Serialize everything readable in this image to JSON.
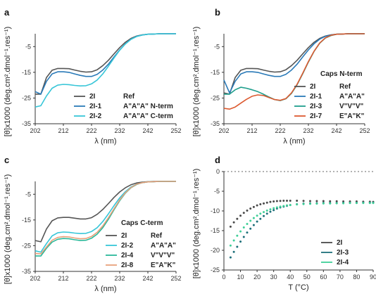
{
  "figure": {
    "panels": [
      {
        "letter": "a",
        "caption": ""
      },
      {
        "letter": "b",
        "caption": "Caps N-term"
      },
      {
        "letter": "c",
        "caption": "Caps C-term"
      },
      {
        "letter": "d",
        "caption": ""
      }
    ]
  },
  "chart_data": [
    {
      "type": "line",
      "panel": "a",
      "xlabel": "λ (nm)",
      "ylabel": "[θ]x1000 (deg.cm².dmol⁻¹.res⁻¹)",
      "xlim": [
        202,
        252
      ],
      "ylim": [
        -35,
        0
      ],
      "xticks": [
        "202",
        "212",
        "222",
        "232",
        "242",
        "252"
      ],
      "yticks": [
        "-5",
        "-15",
        "-25",
        "-35"
      ],
      "grid": false,
      "legend_position": "lower-right",
      "series": [
        {
          "name": "2I",
          "label": "Ref",
          "color": "#555555",
          "x": [
            202,
            204,
            206,
            208,
            210,
            212,
            214,
            216,
            218,
            220,
            222,
            224,
            226,
            228,
            230,
            232,
            234,
            236,
            238,
            240,
            242,
            244,
            246,
            248,
            250,
            252
          ],
          "y": [
            -23.5,
            -23.5,
            -17,
            -14.2,
            -13.5,
            -13.5,
            -13.6,
            -14.1,
            -14.6,
            -14.9,
            -14.8,
            -14,
            -12.4,
            -10.3,
            -7.8,
            -5.4,
            -3.3,
            -1.8,
            -0.9,
            -0.4,
            -0.2,
            -0.1,
            0,
            0,
            0,
            0
          ]
        },
        {
          "name": "2I-1",
          "label": "A\"A\"A\" N-term",
          "color": "#2a7ab8",
          "x": [
            202,
            204,
            206,
            208,
            210,
            212,
            214,
            216,
            218,
            220,
            222,
            224,
            226,
            228,
            230,
            232,
            234,
            236,
            238,
            240,
            242,
            244,
            246,
            248,
            250,
            252
          ],
          "y": [
            -22.5,
            -23.5,
            -18.5,
            -15.6,
            -14.8,
            -14.8,
            -15,
            -15.6,
            -16.2,
            -16.6,
            -16.6,
            -15.8,
            -14.1,
            -11.8,
            -9,
            -6.3,
            -3.9,
            -2.1,
            -1,
            -0.5,
            -0.2,
            -0.1,
            0,
            0,
            0,
            0
          ]
        },
        {
          "name": "2I-2",
          "label": "A\"A\"A\" C-term",
          "color": "#38c6d8",
          "x": [
            202,
            204,
            206,
            208,
            210,
            212,
            214,
            216,
            218,
            220,
            222,
            224,
            226,
            228,
            230,
            232,
            234,
            236,
            238,
            240,
            242,
            244,
            246,
            248,
            250,
            252
          ],
          "y": [
            -28.5,
            -28,
            -24.2,
            -21.2,
            -20,
            -19.7,
            -19.8,
            -20.1,
            -20.3,
            -20.2,
            -19.5,
            -18,
            -15.6,
            -12.6,
            -9.4,
            -6.4,
            -4,
            -2.2,
            -1.1,
            -0.5,
            -0.2,
            -0.1,
            0,
            0,
            0,
            0
          ]
        }
      ]
    },
    {
      "type": "line",
      "panel": "b",
      "title": "Caps N-term",
      "xlabel": "λ (nm)",
      "ylabel": "[θ]x1000 (deg.cm².dmol⁻¹.res⁻¹)",
      "xlim": [
        202,
        252
      ],
      "ylim": [
        -35,
        0
      ],
      "xticks": [
        "202",
        "212",
        "222",
        "232",
        "242",
        "252"
      ],
      "yticks": [
        "-5",
        "-15",
        "-25",
        "-35"
      ],
      "grid": false,
      "legend_position": "lower-right",
      "series": [
        {
          "name": "2I",
          "label": "Ref",
          "color": "#555555",
          "x": [
            202,
            204,
            206,
            208,
            210,
            212,
            214,
            216,
            218,
            220,
            222,
            224,
            226,
            228,
            230,
            232,
            234,
            236,
            238,
            240,
            242,
            244,
            246,
            248,
            250,
            252
          ],
          "y": [
            -23,
            -23.5,
            -17,
            -14.2,
            -13.5,
            -13.5,
            -13.6,
            -14.1,
            -14.6,
            -14.9,
            -14.8,
            -14,
            -12.4,
            -10.3,
            -7.8,
            -5.4,
            -3.3,
            -1.8,
            -0.9,
            -0.4,
            -0.2,
            -0.1,
            0,
            0,
            0,
            0
          ]
        },
        {
          "name": "2I-1",
          "label": "A\"A\"A\"",
          "color": "#2a7ab8",
          "x": [
            202,
            204,
            206,
            208,
            210,
            212,
            214,
            216,
            218,
            220,
            222,
            224,
            226,
            228,
            230,
            232,
            234,
            236,
            238,
            240,
            242,
            244,
            246,
            248,
            250,
            252
          ],
          "y": [
            -18,
            -23,
            -18.5,
            -15.6,
            -14.8,
            -14.8,
            -15,
            -15.6,
            -16.2,
            -16.6,
            -16.6,
            -15.8,
            -14.1,
            -11.8,
            -9,
            -6.3,
            -3.9,
            -2.1,
            -1,
            -0.5,
            -0.2,
            -0.1,
            0,
            0,
            0,
            0
          ]
        },
        {
          "name": "2I-3",
          "label": "V\"V\"V\"",
          "color": "#1f9e8c",
          "x": [
            202,
            204,
            206,
            208,
            210,
            212,
            214,
            216,
            218,
            220,
            222,
            224,
            226,
            228,
            230,
            232,
            234,
            236,
            238,
            240,
            242,
            244,
            246,
            248,
            250,
            252
          ],
          "y": [
            -23.5,
            -23.5,
            -21.8,
            -20.8,
            -21.2,
            -21.8,
            -22.5,
            -23.5,
            -24.6,
            -25.6,
            -26,
            -25.3,
            -23.2,
            -19.8,
            -15.5,
            -11,
            -6.9,
            -3.7,
            -1.7,
            -0.7,
            -0.2,
            -0.1,
            0,
            0,
            0,
            0
          ]
        },
        {
          "name": "2I-7",
          "label": "E\"A\"K\"",
          "color": "#dc5a30",
          "x": [
            202,
            204,
            206,
            208,
            210,
            212,
            214,
            216,
            218,
            220,
            222,
            224,
            226,
            228,
            230,
            232,
            234,
            236,
            238,
            240,
            242,
            244,
            246,
            248,
            250,
            252
          ],
          "y": [
            -29,
            -29.3,
            -28.5,
            -27,
            -25.5,
            -24.3,
            -23.8,
            -24,
            -24.8,
            -25.6,
            -25.9,
            -25.2,
            -23,
            -19.6,
            -15.3,
            -10.8,
            -6.8,
            -3.6,
            -1.6,
            -0.6,
            -0.2,
            -0.1,
            0,
            0,
            0,
            0
          ]
        }
      ]
    },
    {
      "type": "line",
      "panel": "c",
      "title": "Caps C-term",
      "xlabel": "λ (nm)",
      "ylabel": "[θ]x1000 (deg.cm².dmol⁻¹.res⁻¹)",
      "xlim": [
        202,
        252
      ],
      "ylim": [
        -35,
        0
      ],
      "xticks": [
        "202",
        "212",
        "222",
        "232",
        "242",
        "252"
      ],
      "yticks": [
        "-5",
        "-15",
        "-25",
        "-35"
      ],
      "grid": false,
      "legend_position": "lower-right",
      "series": [
        {
          "name": "2I",
          "label": "Ref",
          "color": "#555555",
          "x": [
            202,
            204,
            206,
            208,
            210,
            212,
            214,
            216,
            218,
            220,
            222,
            224,
            226,
            228,
            230,
            232,
            234,
            236,
            238,
            240,
            242,
            244,
            246,
            248,
            250,
            252
          ],
          "y": [
            -23,
            -23.5,
            -18.5,
            -15.3,
            -14.2,
            -14,
            -14,
            -14.3,
            -14.6,
            -14.6,
            -14.1,
            -12.8,
            -10.9,
            -8.6,
            -6.2,
            -4.1,
            -2.5,
            -1.3,
            -0.6,
            -0.3,
            -0.1,
            0,
            0,
            0,
            0,
            0
          ]
        },
        {
          "name": "2I-2",
          "label": "A\"A\"A\"",
          "color": "#38c6d8",
          "x": [
            202,
            204,
            206,
            208,
            210,
            212,
            214,
            216,
            218,
            220,
            222,
            224,
            226,
            228,
            230,
            232,
            234,
            236,
            238,
            240,
            242,
            244,
            246,
            248,
            250,
            252
          ],
          "y": [
            -27,
            -27.5,
            -24.2,
            -21.2,
            -20,
            -19.7,
            -19.8,
            -20.1,
            -20.3,
            -20.2,
            -19.5,
            -18,
            -15.6,
            -12.6,
            -9.4,
            -6.4,
            -4,
            -2.2,
            -1.1,
            -0.5,
            -0.2,
            -0.1,
            0,
            0,
            0,
            0
          ]
        },
        {
          "name": "2I-4",
          "label": "V\"V\"V\"",
          "color": "#2bb89a",
          "x": [
            202,
            204,
            206,
            208,
            210,
            212,
            214,
            216,
            218,
            220,
            222,
            224,
            226,
            228,
            230,
            232,
            234,
            236,
            238,
            240,
            242,
            244,
            246,
            248,
            250,
            252
          ],
          "y": [
            -29,
            -29,
            -26,
            -23.6,
            -22.5,
            -22.2,
            -22.3,
            -22.7,
            -23,
            -22.9,
            -22.1,
            -20.5,
            -18,
            -14.7,
            -11,
            -7.5,
            -4.6,
            -2.5,
            -1.2,
            -0.5,
            -0.2,
            -0.1,
            0,
            0,
            0,
            0
          ]
        },
        {
          "name": "2I-8",
          "label": "E\"A\"K\"",
          "color": "#e8a07a",
          "x": [
            202,
            204,
            206,
            208,
            210,
            212,
            214,
            216,
            218,
            220,
            222,
            224,
            226,
            228,
            230,
            232,
            234,
            236,
            238,
            240,
            242,
            244,
            246,
            248,
            250,
            252
          ],
          "y": [
            -28,
            -28.2,
            -25.5,
            -22.9,
            -21.8,
            -21.5,
            -21.6,
            -22,
            -22.3,
            -22.2,
            -21.4,
            -19.8,
            -17.3,
            -14.1,
            -10.6,
            -7.2,
            -4.4,
            -2.4,
            -1.1,
            -0.5,
            -0.2,
            -0.1,
            0,
            0,
            0,
            0
          ]
        }
      ]
    },
    {
      "type": "scatter",
      "panel": "d",
      "xlabel": "T (°C)",
      "ylabel": "[θ]x1000 (deg.cm².dmol⁻¹.res⁻¹)",
      "xlim": [
        0,
        90
      ],
      "ylim": [
        -25,
        0
      ],
      "xticks": [
        "0",
        "10",
        "20",
        "30",
        "40",
        "50",
        "60",
        "70",
        "80",
        "90"
      ],
      "yticks": [
        "0",
        "-5",
        "-10",
        "-15",
        "-20",
        "-25"
      ],
      "grid": false,
      "reference_line": 0,
      "legend_position": "lower-right",
      "series": [
        {
          "name": "2I",
          "color": "#4a4a4a",
          "x": [
            4,
            6,
            8,
            10,
            12,
            14,
            16,
            18,
            20,
            22,
            24,
            26,
            28,
            30,
            32,
            34,
            36,
            38,
            40,
            44,
            48,
            52,
            56,
            60,
            64,
            68,
            72,
            76,
            80,
            84,
            88,
            90
          ],
          "y": [
            -14,
            -12.9,
            -12,
            -11.2,
            -10.5,
            -9.9,
            -9.4,
            -9,
            -8.6,
            -8.3,
            -8.1,
            -7.9,
            -7.7,
            -7.6,
            -7.5,
            -7.45,
            -7.4,
            -7.4,
            -7.4,
            -7.4,
            -7.45,
            -7.5,
            -7.5,
            -7.5,
            -7.55,
            -7.55,
            -7.6,
            -7.6,
            -7.6,
            -7.65,
            -7.65,
            -7.7
          ]
        },
        {
          "name": "2I-3",
          "color": "#1e6f7a",
          "x": [
            4,
            6,
            8,
            10,
            12,
            14,
            16,
            18,
            20,
            22,
            24,
            26,
            28,
            30,
            32,
            34,
            36,
            38,
            40,
            44,
            48,
            52,
            56,
            60,
            64,
            68,
            72,
            76,
            80,
            84,
            88,
            90
          ],
          "y": [
            -21.8,
            -20.4,
            -19.1,
            -17.8,
            -16.6,
            -15.5,
            -14.5,
            -13.6,
            -12.7,
            -12,
            -11.3,
            -10.7,
            -10.2,
            -9.8,
            -9.4,
            -9.1,
            -8.9,
            -8.7,
            -8.5,
            -8.3,
            -8.15,
            -8.1,
            -8.05,
            -8,
            -8,
            -8,
            -7.95,
            -7.95,
            -7.95,
            -7.9,
            -7.9,
            -7.9
          ]
        },
        {
          "name": "2I-4",
          "color": "#3fcf98",
          "x": [
            4,
            6,
            8,
            10,
            12,
            14,
            16,
            18,
            20,
            22,
            24,
            26,
            28,
            30,
            32,
            34,
            36,
            38,
            40,
            44,
            48,
            52,
            56,
            60,
            64,
            68,
            72,
            76,
            80,
            84,
            88,
            90
          ],
          "y": [
            -18.8,
            -17.5,
            -16.3,
            -15.2,
            -14.2,
            -13.3,
            -12.5,
            -11.8,
            -11.2,
            -10.7,
            -10.3,
            -9.9,
            -9.6,
            -9.3,
            -9.1,
            -8.9,
            -8.75,
            -8.6,
            -8.5,
            -8.35,
            -8.25,
            -8.2,
            -8.15,
            -8.1,
            -8.1,
            -8.05,
            -8.05,
            -8,
            -8,
            -8,
            -8,
            -8
          ]
        }
      ]
    }
  ]
}
